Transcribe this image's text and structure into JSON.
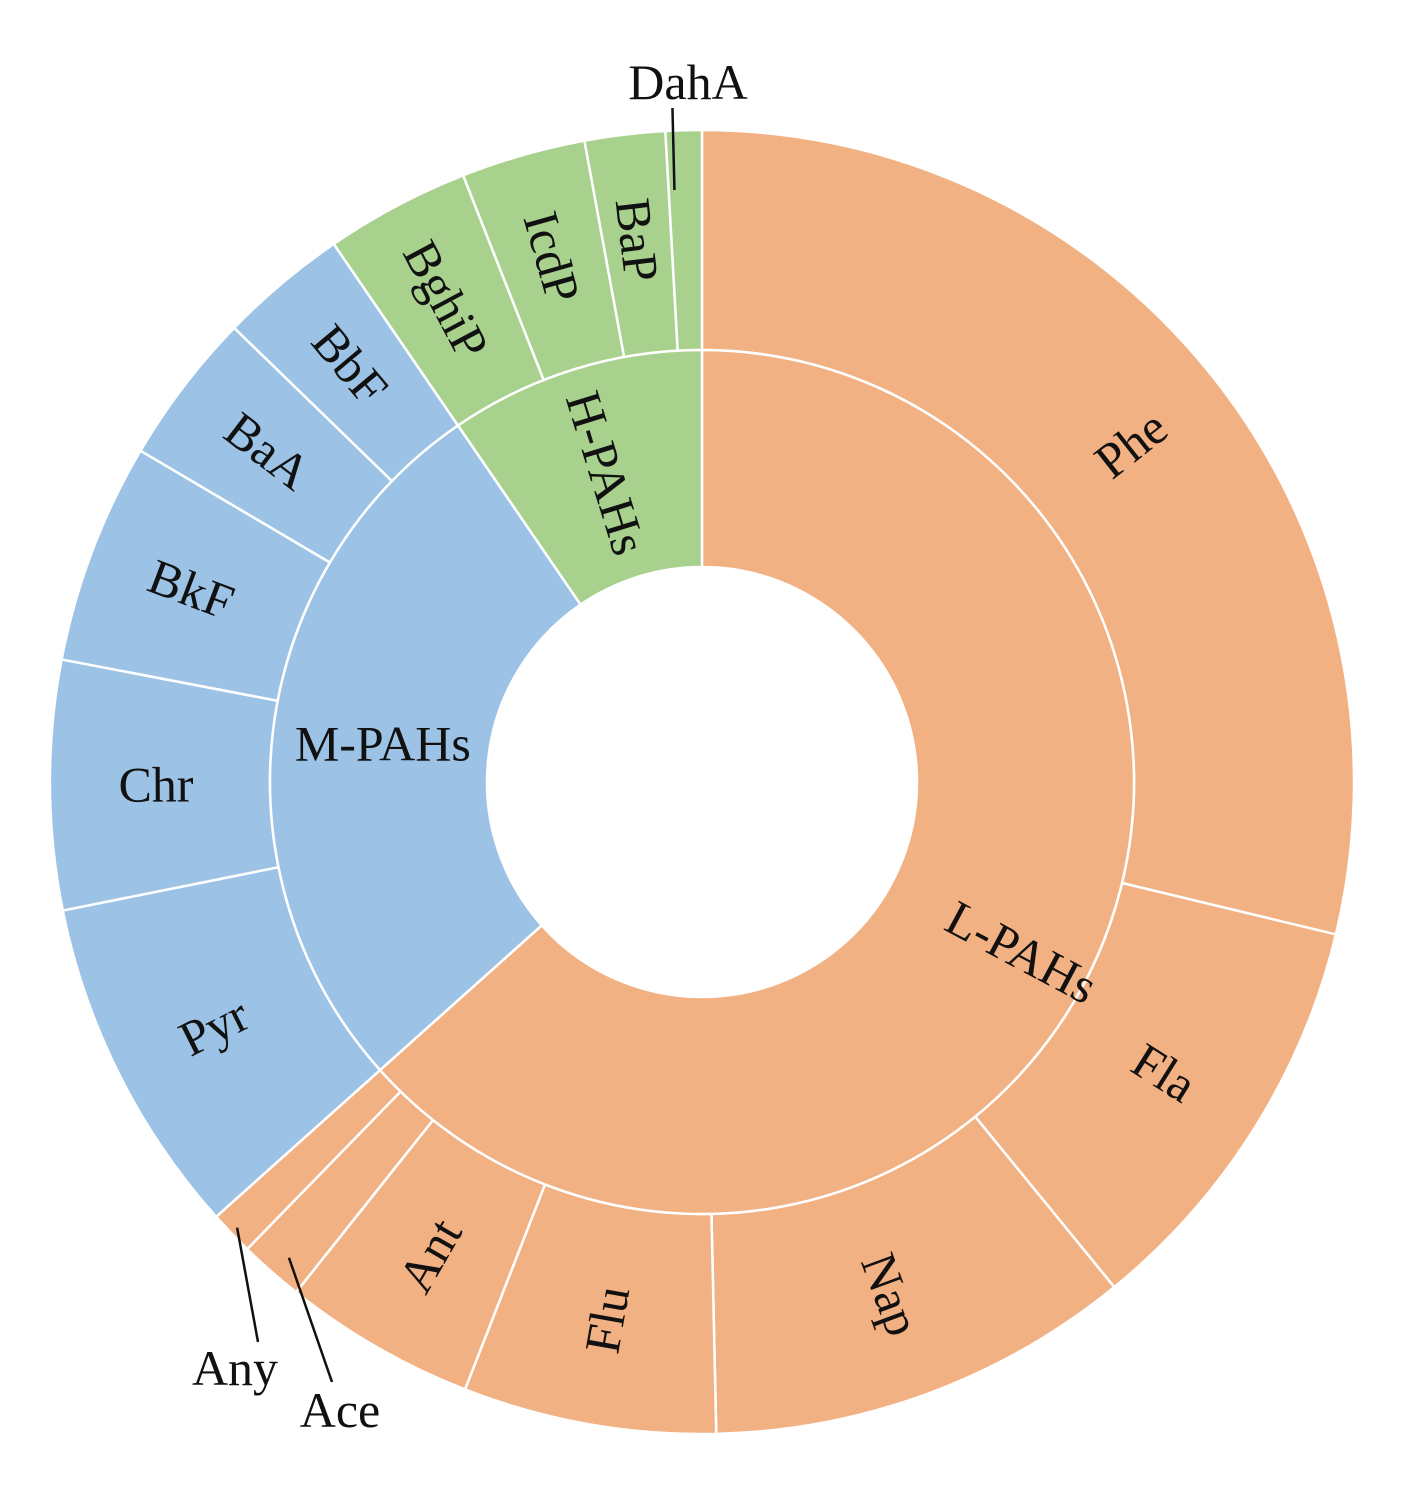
{
  "chart_data": {
    "type": "sunburst",
    "title": "",
    "colors": {
      "L-PAHs": "#F2B183",
      "M-PAHs": "#9CC3E6",
      "H-PAHs": "#A9D18E"
    },
    "groups": [
      {
        "name": "L-PAHs",
        "children": [
          {
            "name": "Phe",
            "value": 28.9
          },
          {
            "name": "Fla",
            "value": 10.4
          },
          {
            "name": "Nap",
            "value": 10.6
          },
          {
            "name": "Flu",
            "value": 6.3
          },
          {
            "name": "Ant",
            "value": 4.8
          },
          {
            "name": "Ace",
            "value": 1.6
          },
          {
            "name": "Any",
            "value": 1.1
          }
        ]
      },
      {
        "name": "M-PAHs",
        "children": [
          {
            "name": "Pyr",
            "value": 8.5
          },
          {
            "name": "Chr",
            "value": 6.2
          },
          {
            "name": "BkF",
            "value": 5.5
          },
          {
            "name": "BaA",
            "value": 3.8
          },
          {
            "name": "BbF",
            "value": 3.2
          }
        ]
      },
      {
        "name": "H-PAHs",
        "children": [
          {
            "name": "BghiP",
            "value": 3.6
          },
          {
            "name": "IcdP",
            "value": 3.1
          },
          {
            "name": "BaP",
            "value": 2.0
          },
          {
            "name": "DahA",
            "value": 0.9
          }
        ]
      }
    ]
  }
}
